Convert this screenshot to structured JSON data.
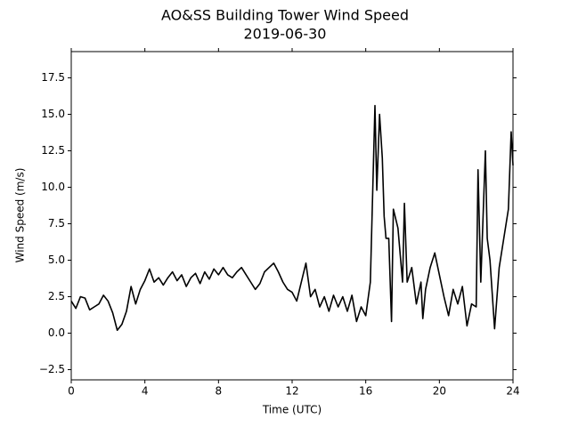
{
  "chart_data": {
    "type": "line",
    "title": "AO&SS Building Tower Wind Speed",
    "subtitle": "2019-06-30",
    "xlabel": "Time (UTC)",
    "ylabel": "Wind Speed (m/s)",
    "xlim": [
      0,
      24
    ],
    "xticks": [
      0,
      4,
      8,
      12,
      16,
      20,
      24
    ],
    "ylim": [
      -3.2,
      19.3
    ],
    "yticks": [
      {
        "value": -2.5,
        "label": "−2.5"
      },
      {
        "value": 0,
        "label": "0.0"
      },
      2.5,
      {
        "value": 5,
        "label": "5.0"
      },
      7.5,
      {
        "value": 10,
        "label": "10.0"
      },
      12.5,
      {
        "value": 15,
        "label": "15.0"
      },
      17.5
    ],
    "grid": false,
    "series": [
      {
        "color": "#000000",
        "x": [
          0,
          0.25,
          0.5,
          0.75,
          1.0,
          1.25,
          1.5,
          1.75,
          2.0,
          2.25,
          2.5,
          2.75,
          3.0,
          3.25,
          3.5,
          3.75,
          4.0,
          4.25,
          4.5,
          4.75,
          5.0,
          5.25,
          5.5,
          5.75,
          6.0,
          6.25,
          6.5,
          6.75,
          7.0,
          7.25,
          7.5,
          7.75,
          8.0,
          8.25,
          8.5,
          8.75,
          9.0,
          9.25,
          9.5,
          9.75,
          10.0,
          10.25,
          10.5,
          10.75,
          11.0,
          11.25,
          11.5,
          11.75,
          12.0,
          12.25,
          12.5,
          12.75,
          13.0,
          13.25,
          13.5,
          13.75,
          14.0,
          14.25,
          14.5,
          14.75,
          15.0,
          15.25,
          15.5,
          15.75,
          16.0,
          16.25,
          16.5,
          16.6,
          16.75,
          16.9,
          17.0,
          17.1,
          17.25,
          17.4,
          17.5,
          17.75,
          18.0,
          18.1,
          18.25,
          18.5,
          18.75,
          19.0,
          19.1,
          19.25,
          19.5,
          19.75,
          20.0,
          20.25,
          20.5,
          20.75,
          21.0,
          21.25,
          21.5,
          21.75,
          22.0,
          22.1,
          22.25,
          22.5,
          22.6,
          22.75,
          23.0,
          23.25,
          23.5,
          23.75,
          23.9,
          24.0
        ],
        "values": [
          2.2,
          1.7,
          2.5,
          2.4,
          1.6,
          1.8,
          2.0,
          2.6,
          2.2,
          1.4,
          0.2,
          0.6,
          1.5,
          3.2,
          2.0,
          3.0,
          3.6,
          4.4,
          3.5,
          3.8,
          3.3,
          3.8,
          4.2,
          3.6,
          4.0,
          3.2,
          3.8,
          4.1,
          3.4,
          4.2,
          3.7,
          4.4,
          4.0,
          4.5,
          4.0,
          3.8,
          4.2,
          4.5,
          4.0,
          3.5,
          3.0,
          3.4,
          4.2,
          4.5,
          4.8,
          4.2,
          3.5,
          3.0,
          2.8,
          2.2,
          3.5,
          4.8,
          2.5,
          3.0,
          1.8,
          2.5,
          1.5,
          2.6,
          1.8,
          2.5,
          1.5,
          2.6,
          0.8,
          1.8,
          1.2,
          3.5,
          15.6,
          9.8,
          15.0,
          12.0,
          8.0,
          6.5,
          6.5,
          0.8,
          8.5,
          7.2,
          3.5,
          8.9,
          3.5,
          4.5,
          2.0,
          3.5,
          1.0,
          3.0,
          4.5,
          5.5,
          4.0,
          2.5,
          1.2,
          3.0,
          2.0,
          3.2,
          0.5,
          2.0,
          1.8,
          11.2,
          3.5,
          12.5,
          6.5,
          5.0,
          0.3,
          4.5,
          6.5,
          8.5,
          13.8,
          11.5
        ]
      }
    ]
  }
}
